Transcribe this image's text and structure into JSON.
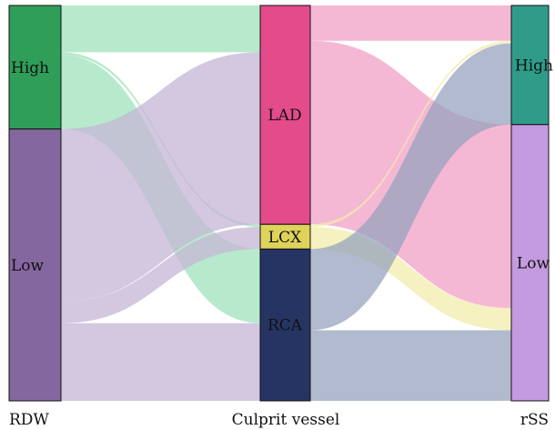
{
  "diagram": {
    "type": "sankey",
    "columns": [
      {
        "label": "RDW"
      },
      {
        "label": "Culprit vessel"
      },
      {
        "label": "rSS"
      }
    ],
    "nodes": {
      "rdw_high": {
        "label": "High",
        "color": "#2e9e59"
      },
      "rdw_low": {
        "label": "Low",
        "color": "#8567a0"
      },
      "cv_lad": {
        "label": "LAD",
        "color": "#e44b8b"
      },
      "cv_lcx": {
        "label": "LCX",
        "color": "#dfd35a"
      },
      "cv_rca": {
        "label": "RCA",
        "color": "#263463"
      },
      "rss_high": {
        "label": "High",
        "color": "#2f9c8a"
      },
      "rss_low": {
        "label": "Low",
        "color": "#c49be0"
      }
    },
    "flows_left": [
      {
        "from": "rdw_high",
        "to": "cv_lad",
        "value": 53,
        "color": "#9fe3bb"
      },
      {
        "from": "rdw_high",
        "to": "cv_lcx",
        "value": 3,
        "color": "#9fe3bb"
      },
      {
        "from": "rdw_high",
        "to": "cv_rca",
        "value": 84,
        "color": "#9fe3bb"
      },
      {
        "from": "rdw_low",
        "to": "cv_lad",
        "value": 195,
        "color": "#c6b6d6"
      },
      {
        "from": "rdw_low",
        "to": "cv_lcx",
        "value": 25,
        "color": "#c6b6d6"
      },
      {
        "from": "rdw_low",
        "to": "cv_rca",
        "value": 88,
        "color": "#c6b6d6"
      }
    ],
    "flows_right": [
      {
        "from": "cv_lad",
        "to": "rss_high",
        "value": 40,
        "color": "#f2a0c6"
      },
      {
        "from": "cv_lad",
        "to": "rss_low",
        "value": 208,
        "color": "#f2a0c6"
      },
      {
        "from": "cv_lcx",
        "to": "rss_high",
        "value": 3,
        "color": "#f3ecab"
      },
      {
        "from": "cv_lcx",
        "to": "rss_low",
        "value": 25,
        "color": "#f3ecab"
      },
      {
        "from": "cv_rca",
        "to": "rss_high",
        "value": 92,
        "color": "#97a3bd"
      },
      {
        "from": "cv_rca",
        "to": "rss_low",
        "value": 80,
        "color": "#97a3bd"
      }
    ]
  }
}
